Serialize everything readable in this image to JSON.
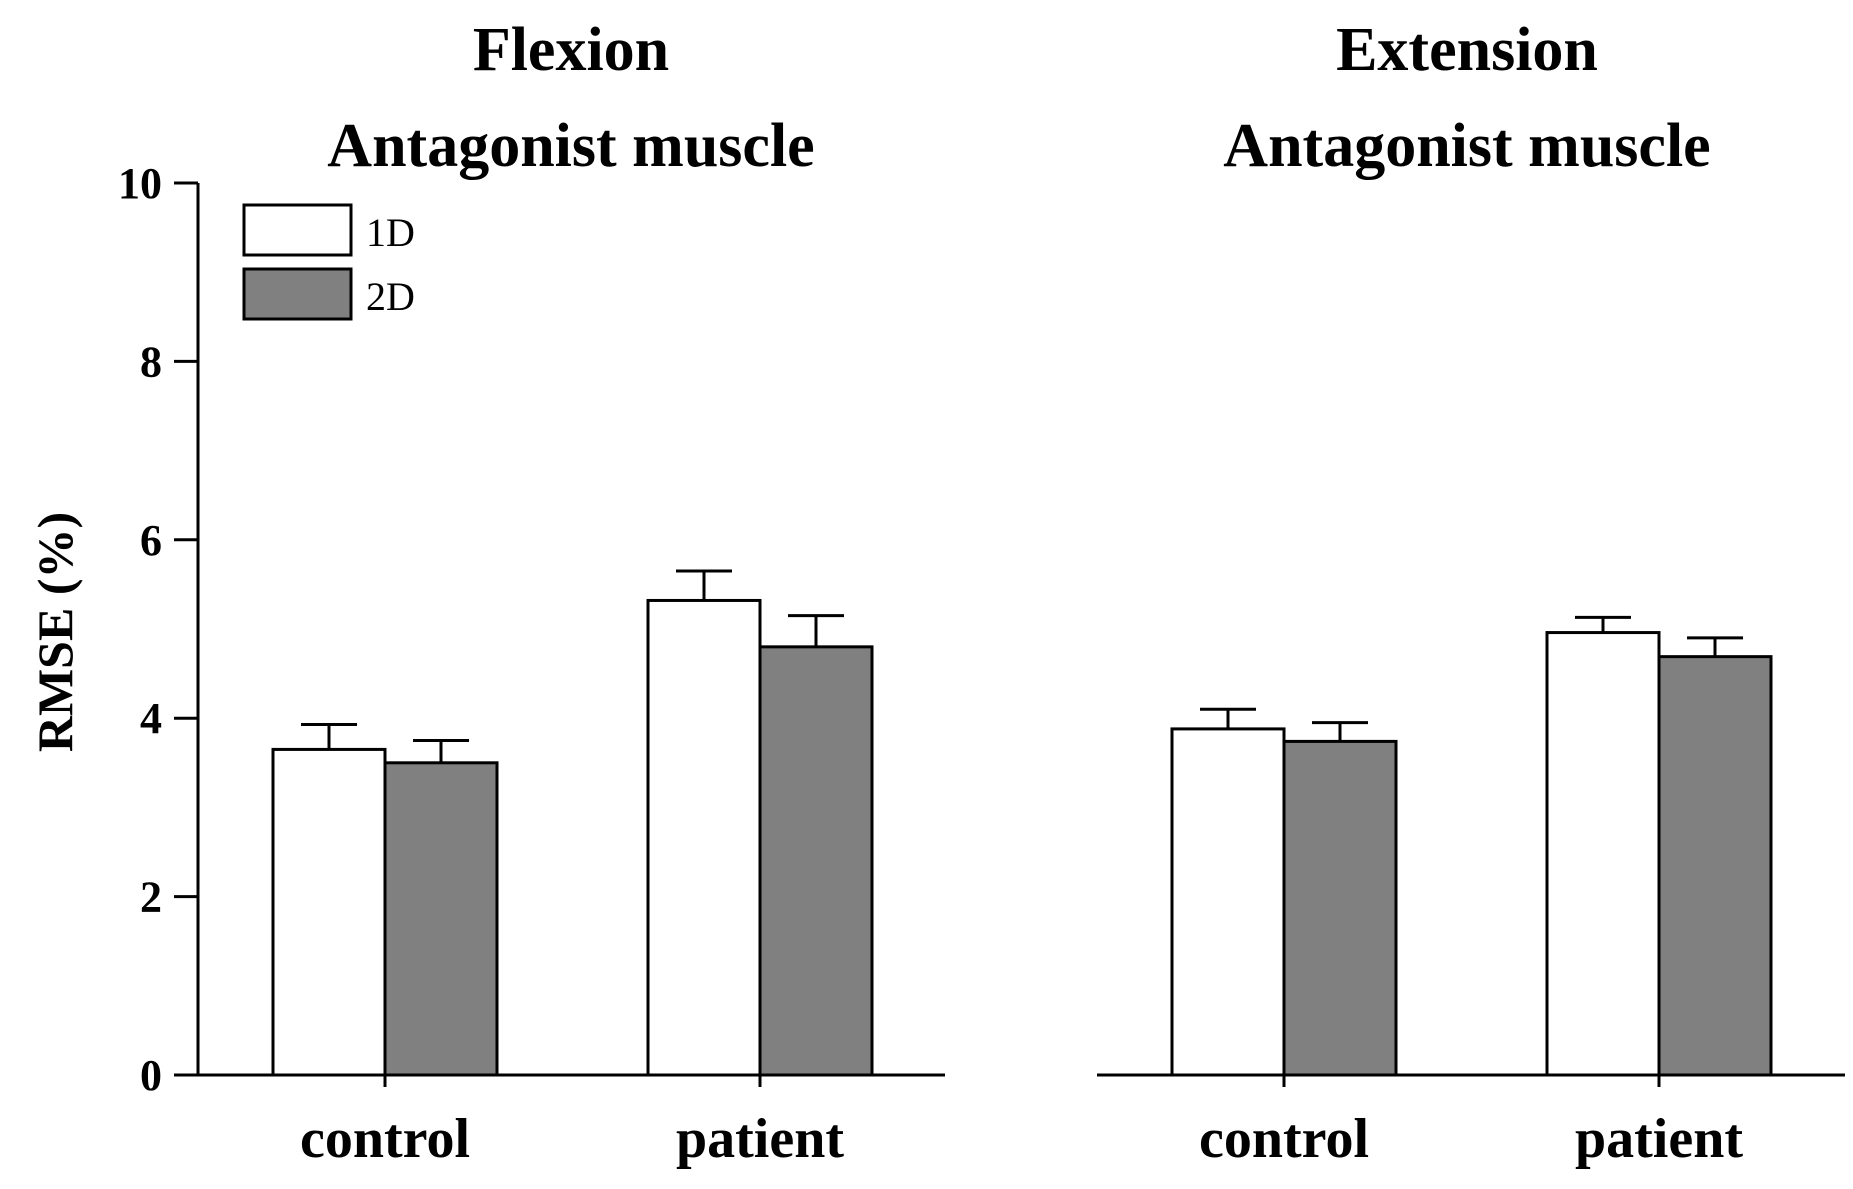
{
  "chart_data": [
    {
      "type": "bar",
      "title": "Flexion",
      "subtitle": "Antagonist muscle",
      "xlabel": "",
      "ylabel": "RMSE (%)",
      "ylim": [
        0,
        10
      ],
      "yticks": [
        "0",
        "2",
        "4",
        "6",
        "8",
        "10"
      ],
      "categories": [
        "control",
        "patient"
      ],
      "series": [
        {
          "name": "1D",
          "color": "#ffffff",
          "values": [
            3.65,
            5.32
          ],
          "errors": [
            0.28,
            0.33
          ]
        },
        {
          "name": "2D",
          "color": "#808080",
          "values": [
            3.5,
            4.8
          ],
          "errors": [
            0.25,
            0.35
          ]
        }
      ],
      "legend": {
        "placement": "top-left",
        "entries": [
          "1D",
          "2D"
        ]
      }
    },
    {
      "type": "bar",
      "title": "Extension",
      "subtitle": "Antagonist muscle",
      "xlabel": "",
      "ylabel": "",
      "ylim": [
        0,
        10
      ],
      "categories": [
        "control",
        "patient"
      ],
      "series": [
        {
          "name": "1D",
          "color": "#ffffff",
          "values": [
            3.88,
            4.96
          ],
          "errors": [
            0.22,
            0.17
          ]
        },
        {
          "name": "2D",
          "color": "#808080",
          "values": [
            3.74,
            4.69
          ],
          "errors": [
            0.21,
            0.21
          ]
        }
      ]
    }
  ]
}
